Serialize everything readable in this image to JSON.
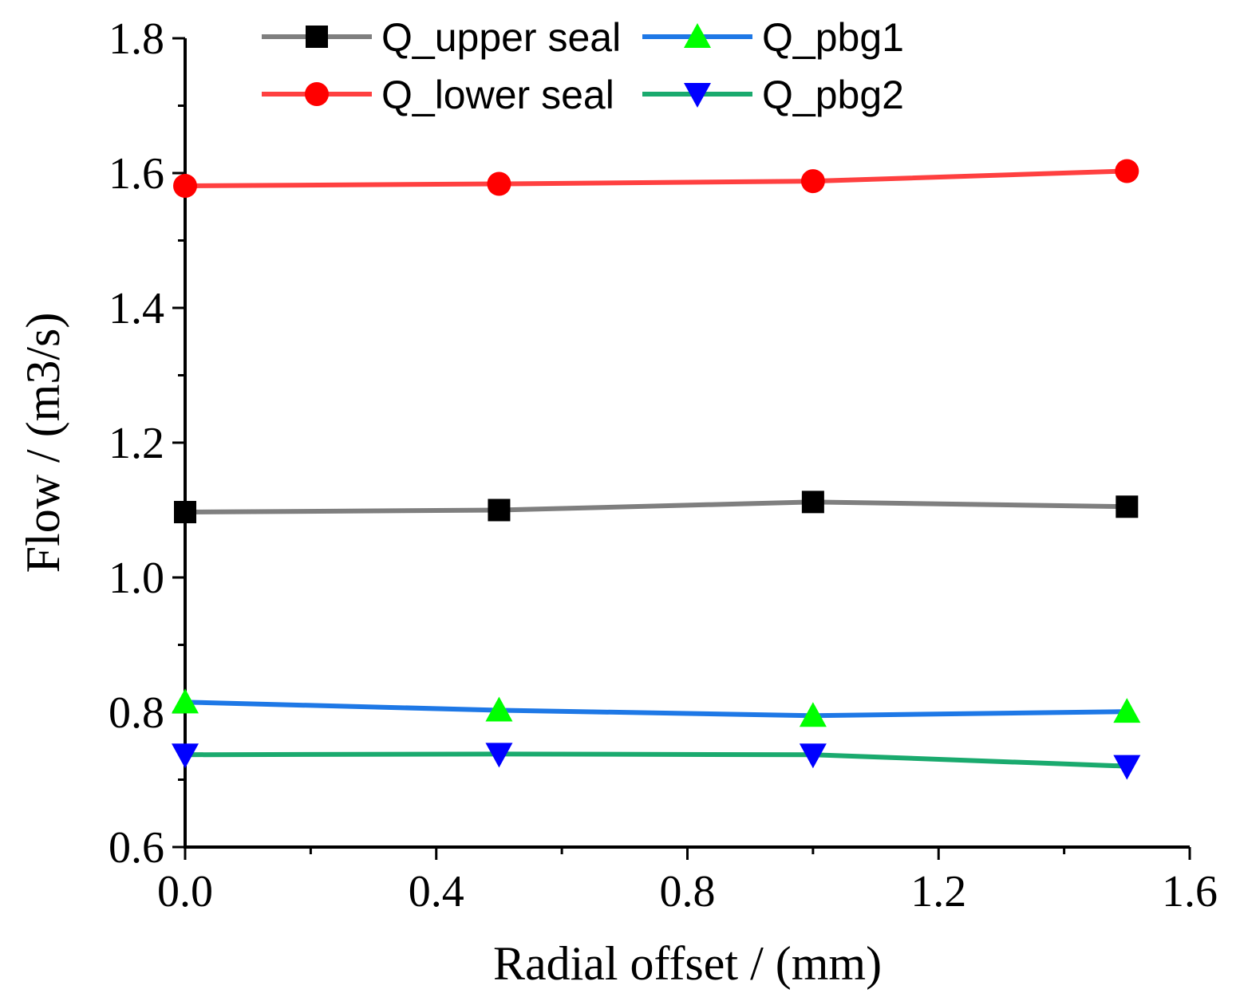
{
  "chart_data": {
    "type": "line",
    "title": "",
    "xlabel": "Radial offset / (mm)",
    "ylabel": "Flow / (m3/s)",
    "xlim": [
      0.0,
      1.6
    ],
    "ylim": [
      0.6,
      1.8
    ],
    "x_ticks": [
      "0.0",
      "0.4",
      "0.8",
      "1.2",
      "1.6"
    ],
    "y_ticks": [
      "0.6",
      "0.8",
      "1.0",
      "1.2",
      "1.4",
      "1.6",
      "1.8"
    ],
    "x_tick_values": [
      0.0,
      0.4,
      0.8,
      1.2,
      1.6
    ],
    "y_tick_values": [
      0.6,
      0.8,
      1.0,
      1.2,
      1.4,
      1.6,
      1.8
    ],
    "x_minor_tick_values": [
      0.2,
      0.6,
      1.0,
      1.4
    ],
    "y_minor_tick_values": [
      0.7,
      0.9,
      1.1,
      1.3,
      1.5,
      1.7
    ],
    "grid": false,
    "legend_position": "top",
    "x": [
      0.0,
      0.5,
      1.0,
      1.5
    ],
    "series": [
      {
        "name": "Q_upper seal",
        "values": [
          1.097,
          1.1,
          1.112,
          1.105
        ],
        "line_color": "#7f7f7f",
        "marker": "square",
        "marker_color": "#000000"
      },
      {
        "name": "Q_lower seal",
        "values": [
          1.581,
          1.584,
          1.588,
          1.603
        ],
        "line_color": "#ff4040",
        "marker": "circle",
        "marker_color": "#ff0000"
      },
      {
        "name": "Q_pbg1",
        "values": [
          0.815,
          0.803,
          0.795,
          0.801
        ],
        "line_color": "#1e78e6",
        "marker": "triangle-up",
        "marker_color": "#00ff00"
      },
      {
        "name": "Q_pbg2",
        "values": [
          0.737,
          0.738,
          0.737,
          0.72
        ],
        "line_color": "#1aaa6e",
        "marker": "triangle-down",
        "marker_color": "#0000ff"
      }
    ]
  }
}
